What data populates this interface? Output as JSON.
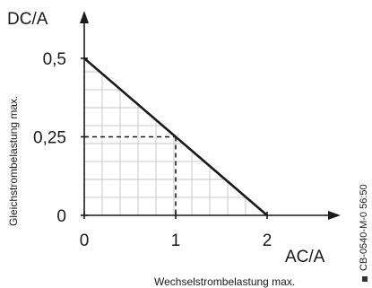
{
  "chart_data": {
    "type": "line",
    "y_unit_label": "DC/A",
    "x_unit_label": "AC/A",
    "ylabel": "Gleichstrombelastung max.",
    "xlabel": "Wechselstrombelastung max.",
    "side_code": "CB-0540-M-0 56:50",
    "x_ticks": [
      {
        "value": 0,
        "label": "0"
      },
      {
        "value": 1,
        "label": "1"
      },
      {
        "value": 2,
        "label": "2"
      }
    ],
    "y_ticks": [
      {
        "value": 0,
        "label": "0"
      },
      {
        "value": 0.25,
        "label": "0,25"
      },
      {
        "value": 0.5,
        "label": "0,5"
      }
    ],
    "xlim": [
      0,
      2
    ],
    "ylim": [
      0,
      0.5
    ],
    "grid": true,
    "series": [
      {
        "x": [
          0,
          2
        ],
        "y": [
          0.5,
          0
        ]
      }
    ],
    "reference_point": {
      "x": 1,
      "y": 0.25
    }
  }
}
